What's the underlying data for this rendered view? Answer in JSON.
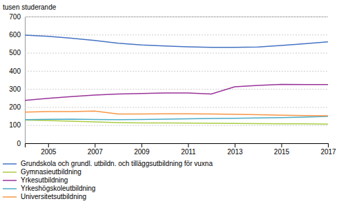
{
  "chart_data": {
    "type": "line",
    "ylabel": "tusen studerande",
    "x": [
      2004,
      2005,
      2006,
      2007,
      2008,
      2009,
      2010,
      2011,
      2012,
      2013,
      2014,
      2015,
      2016,
      2017
    ],
    "series": [
      {
        "name": "Grundskola och grundl. utbildn. och tilläggsutbildning för vuxna",
        "color": "#4472C4",
        "values": [
          597,
          591,
          580,
          568,
          553,
          543,
          537,
          533,
          530,
          530,
          532,
          540,
          550,
          560
        ]
      },
      {
        "name": "Gymnasieutbildning",
        "color": "#AACC44",
        "values": [
          128,
          126,
          122,
          118,
          114,
          112,
          112,
          111,
          110,
          109,
          108,
          107,
          107,
          106
        ]
      },
      {
        "name": "Yrkesutbildning",
        "color": "#993399",
        "values": [
          237,
          248,
          258,
          266,
          272,
          275,
          278,
          278,
          272,
          312,
          320,
          325,
          324,
          324
        ]
      },
      {
        "name": "Yrkeshögskoleutbildning",
        "color": "#4BACC6",
        "values": [
          130,
          132,
          133,
          131,
          130,
          131,
          133,
          135,
          137,
          138,
          140,
          142,
          145,
          148
        ]
      },
      {
        "name": "Universitetsutbildning",
        "color": "#F79646",
        "values": [
          172,
          175,
          175,
          178,
          162,
          162,
          163,
          163,
          162,
          160,
          158,
          155,
          153,
          152
        ]
      }
    ],
    "xlim": [
      2004,
      2017
    ],
    "xticks": [
      2005,
      2007,
      2009,
      2011,
      2013,
      2015,
      2017
    ],
    "ylim": [
      0,
      700
    ],
    "yticks": [
      0,
      100,
      200,
      300,
      400,
      500,
      600,
      700
    ],
    "grid": true,
    "legend": "bottom"
  }
}
